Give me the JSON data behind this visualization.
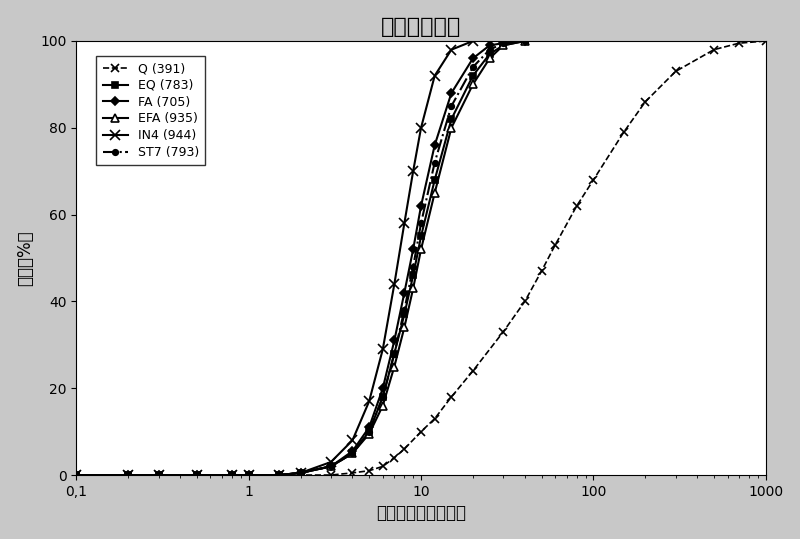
{
  "title": "颗粒尺寸分布",
  "xlabel": "颗粒球直径（微米）",
  "ylabel": "体积（%）",
  "xlim": [
    0.1,
    1000
  ],
  "ylim": [
    0,
    100
  ],
  "series": {
    "Q (391)": {
      "x": [
        0.1,
        0.2,
        0.3,
        0.5,
        0.8,
        1.0,
        1.5,
        2.0,
        3.0,
        4.0,
        5.0,
        6.0,
        7.0,
        8.0,
        10.0,
        12.0,
        15.0,
        20.0,
        30.0,
        40.0,
        50.0,
        60.0,
        80.0,
        100.0,
        150.0,
        200.0,
        300.0,
        500.0,
        700.0,
        1000.0
      ],
      "y": [
        0,
        0,
        0,
        0,
        0,
        0,
        0,
        0,
        0,
        0.5,
        1.0,
        2.0,
        4.0,
        6.0,
        10.0,
        13.0,
        18.0,
        24.0,
        33.0,
        40.0,
        47.0,
        53.0,
        62.0,
        68.0,
        79.0,
        86.0,
        93.0,
        98.0,
        99.5,
        100.0
      ],
      "linestyle": "--",
      "marker": "x",
      "markersize": 6
    },
    "EQ (783)": {
      "x": [
        0.1,
        0.2,
        0.3,
        0.5,
        0.8,
        1.0,
        1.5,
        2.0,
        3.0,
        4.0,
        5.0,
        6.0,
        7.0,
        8.0,
        9.0,
        10.0,
        12.0,
        15.0,
        20.0,
        25.0,
        30.0,
        40.0
      ],
      "y": [
        0,
        0,
        0,
        0,
        0,
        0,
        0,
        0.5,
        2.0,
        5.0,
        10.0,
        18.0,
        28.0,
        37.0,
        46.0,
        55.0,
        68.0,
        82.0,
        92.0,
        97.0,
        99.0,
        100.0
      ],
      "linestyle": "-",
      "marker": "s",
      "markersize": 5
    },
    "FA (705)": {
      "x": [
        0.1,
        0.2,
        0.3,
        0.5,
        0.8,
        1.0,
        1.5,
        2.0,
        3.0,
        4.0,
        5.0,
        6.0,
        7.0,
        8.0,
        9.0,
        10.0,
        12.0,
        15.0,
        20.0,
        25.0,
        30.0,
        40.0
      ],
      "y": [
        0,
        0,
        0,
        0,
        0,
        0,
        0,
        0.5,
        2.0,
        5.5,
        11.0,
        20.0,
        31.0,
        42.0,
        52.0,
        62.0,
        76.0,
        88.0,
        96.0,
        99.0,
        99.5,
        100.0
      ],
      "linestyle": "-",
      "marker": "D",
      "markersize": 4
    },
    "EFA (935)": {
      "x": [
        0.1,
        0.2,
        0.3,
        0.5,
        0.8,
        1.0,
        1.5,
        2.0,
        3.0,
        4.0,
        5.0,
        6.0,
        7.0,
        8.0,
        9.0,
        10.0,
        12.0,
        15.0,
        20.0,
        25.0,
        30.0,
        40.0
      ],
      "y": [
        0,
        0,
        0,
        0,
        0,
        0,
        0,
        0.5,
        2.0,
        5.0,
        9.5,
        16.0,
        25.0,
        34.0,
        43.0,
        52.0,
        65.0,
        80.0,
        90.0,
        96.0,
        99.0,
        100.0
      ],
      "linestyle": "-",
      "marker": "^",
      "markersize": 6
    },
    "IN4 (944)": {
      "x": [
        0.1,
        0.2,
        0.3,
        0.5,
        0.8,
        1.0,
        1.5,
        2.0,
        3.0,
        4.0,
        5.0,
        6.0,
        7.0,
        8.0,
        9.0,
        10.0,
        12.0,
        15.0,
        20.0
      ],
      "y": [
        0,
        0,
        0,
        0,
        0,
        0,
        0,
        0.5,
        3.0,
        8.0,
        17.0,
        29.0,
        44.0,
        58.0,
        70.0,
        80.0,
        92.0,
        98.0,
        100.0
      ],
      "linestyle": "-",
      "marker": "x",
      "markersize": 7
    },
    "ST7 (793)": {
      "x": [
        0.1,
        0.2,
        0.3,
        0.5,
        0.8,
        1.0,
        1.5,
        2.0,
        3.0,
        4.0,
        5.0,
        6.0,
        7.0,
        8.0,
        9.0,
        10.0,
        12.0,
        15.0,
        20.0,
        25.0,
        30.0,
        40.0
      ],
      "y": [
        0,
        0,
        0,
        0,
        0,
        0,
        0,
        0.5,
        2.0,
        5.0,
        10.0,
        18.0,
        28.0,
        38.0,
        48.0,
        58.0,
        72.0,
        85.0,
        94.0,
        98.0,
        99.5,
        100.0
      ],
      "linestyle": "-.",
      "marker": "o",
      "markersize": 4
    }
  },
  "yticks": [
    0,
    20,
    40,
    60,
    80,
    100
  ],
  "title_fontsize": 16,
  "label_fontsize": 12,
  "tick_fontsize": 10
}
